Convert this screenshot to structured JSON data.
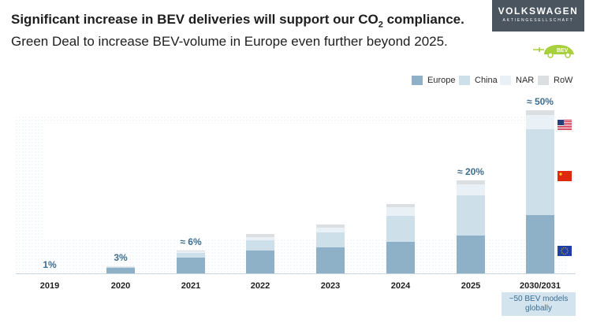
{
  "header": {
    "title_bold": "Significant increase in BEV deliveries will support our CO",
    "title_sub": "2",
    "title_bold_end": " compliance.",
    "title_rest": " Green Deal to increase BEV-volume in Europe even further beyond 2025."
  },
  "logo": {
    "name": "VOLKSWAGEN",
    "sub": "AKTIENGESELLSCHAFT",
    "badge": "BEV",
    "color": "#4a5560"
  },
  "flags": [
    "us-flag-icon",
    "china-flag-icon",
    "eu-flag-icon"
  ],
  "footnote": "~50 BEV models globally",
  "chart_data": {
    "type": "bar",
    "stacked": true,
    "categories": [
      "2019",
      "2020",
      "2021",
      "2022",
      "2023",
      "2024",
      "2025",
      "2030/2031"
    ],
    "series": [
      {
        "name": "Europe",
        "color": "#8fb1c8",
        "values": [
          0,
          7,
          20,
          29,
          33,
          40,
          48,
          74
        ]
      },
      {
        "name": "China",
        "color": "#cde0e9",
        "values": [
          0,
          1,
          6,
          13,
          19,
          33,
          51,
          109
        ]
      },
      {
        "name": "NAR",
        "color": "#e9f1f6",
        "values": [
          0,
          0.5,
          2,
          4,
          6,
          11,
          14,
          18
        ]
      },
      {
        "name": "RoW",
        "color": "#dcdfe2",
        "values": [
          0,
          0.5,
          1,
          4,
          4,
          4,
          5,
          6
        ]
      }
    ],
    "bar_labels": [
      "1%",
      "3%",
      "≈ 6%",
      "",
      "",
      "",
      "≈ 20%",
      "≈ 50%"
    ],
    "ylim": [
      0,
      210
    ],
    "grid": false,
    "legend": "top-right"
  }
}
